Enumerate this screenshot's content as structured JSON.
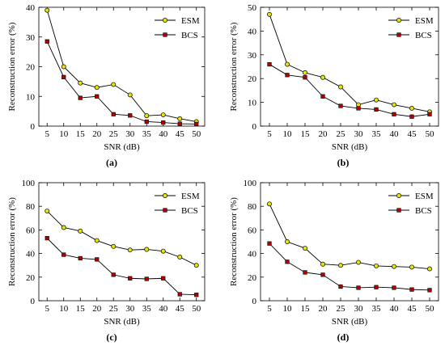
{
  "figure": {
    "panel_labels": [
      "(a)",
      "(b)",
      "(c)",
      "(d)"
    ]
  },
  "colors": {
    "esm_fill": "#e6e600",
    "bcs_fill": "#b30000",
    "line": "#000000"
  },
  "chart_data": [
    {
      "type": "line",
      "panel": "(a)",
      "xlabel": "SNR (dB)",
      "ylabel": "Reconstruction error (%)",
      "x": [
        5,
        10,
        15,
        20,
        25,
        30,
        35,
        40,
        45,
        50
      ],
      "xticks": [
        5,
        10,
        15,
        20,
        25,
        30,
        35,
        40,
        45,
        50
      ],
      "ylim": [
        0,
        40
      ],
      "yticks": [
        0,
        10,
        20,
        30,
        40
      ],
      "legend_position": "top-right",
      "series": [
        {
          "name": "ESM",
          "values": [
            39,
            20,
            14.5,
            13,
            14,
            10.5,
            3.5,
            3.8,
            2.5,
            1.5
          ]
        },
        {
          "name": "BCS",
          "values": [
            28.5,
            16.5,
            9.5,
            10,
            4,
            3.6,
            1.5,
            1.2,
            0.8,
            0.7
          ]
        }
      ]
    },
    {
      "type": "line",
      "panel": "(b)",
      "xlabel": "SNR (dB)",
      "ylabel": "Reconstruction error (%)",
      "x": [
        5,
        10,
        15,
        20,
        25,
        30,
        35,
        40,
        45,
        50
      ],
      "xticks": [
        5,
        10,
        15,
        20,
        25,
        30,
        35,
        40,
        45,
        50
      ],
      "ylim": [
        0,
        50
      ],
      "yticks": [
        0,
        10,
        20,
        30,
        40,
        50
      ],
      "legend_position": "top-right",
      "series": [
        {
          "name": "ESM",
          "values": [
            47,
            26,
            22.5,
            20.5,
            16.5,
            9,
            11,
            9,
            7.5,
            6
          ]
        },
        {
          "name": "BCS",
          "values": [
            26,
            21.5,
            20.5,
            12.5,
            8.5,
            7.5,
            7,
            5,
            4,
            5
          ]
        }
      ]
    },
    {
      "type": "line",
      "panel": "(c)",
      "xlabel": "SNR (dB)",
      "ylabel": "Reconstruction error (%)",
      "x": [
        5,
        10,
        15,
        20,
        25,
        30,
        35,
        40,
        45,
        50
      ],
      "xticks": [
        5,
        10,
        15,
        20,
        25,
        30,
        35,
        40,
        45,
        50
      ],
      "ylim": [
        0,
        100
      ],
      "yticks": [
        0,
        20,
        40,
        60,
        80,
        100
      ],
      "legend_position": "top-right",
      "series": [
        {
          "name": "ESM",
          "values": [
            76,
            62,
            59,
            51,
            46,
            43,
            43.5,
            42,
            37,
            30
          ]
        },
        {
          "name": "BCS",
          "values": [
            53,
            39,
            36,
            35,
            22,
            19,
            18.5,
            19,
            5.5,
            5
          ]
        }
      ]
    },
    {
      "type": "line",
      "panel": "(d)",
      "xlabel": "SNR (dB)",
      "ylabel": "Reconstruction error (%)",
      "x": [
        5,
        10,
        15,
        20,
        25,
        30,
        35,
        40,
        45,
        50
      ],
      "xticks": [
        5,
        10,
        15,
        20,
        25,
        30,
        35,
        40,
        45,
        50
      ],
      "ylim": [
        0,
        100
      ],
      "yticks": [
        0,
        20,
        40,
        60,
        80,
        100
      ],
      "legend_position": "top-right",
      "series": [
        {
          "name": "ESM",
          "values": [
            82,
            50,
            44.5,
            31,
            30,
            32.5,
            29.5,
            29,
            28.5,
            27
          ]
        },
        {
          "name": "BCS",
          "values": [
            48.5,
            33,
            24,
            22,
            12,
            11,
            11.5,
            11,
            9.5,
            9
          ]
        }
      ]
    }
  ]
}
